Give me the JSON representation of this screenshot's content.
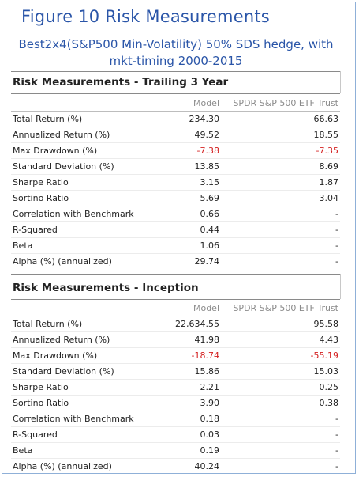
{
  "figure": {
    "title": "Figure 10   Risk Measurements",
    "subtitle_line1": "Best2x4(S&P500 Min-Volatility) 50% SDS hedge, with",
    "subtitle_line2": "mkt-timing 2000-2015"
  },
  "columns": {
    "model": "Model",
    "benchmark": "SPDR S&P 500 ETF Trust"
  },
  "colors": {
    "title_blue": "#2a55a8",
    "negative": "#d42020",
    "frame": "#8fb0d8"
  },
  "sections": [
    {
      "title": "Risk Measurements - Trailing 3 Year",
      "rows": [
        {
          "label": "Total Return (%)",
          "model": "234.30",
          "benchmark": "66.63"
        },
        {
          "label": "Annualized Return (%)",
          "model": "49.52",
          "benchmark": "18.55"
        },
        {
          "label": "Max Drawdown (%)",
          "model": "-7.38",
          "benchmark": "-7.35"
        },
        {
          "label": "Standard Deviation (%)",
          "model": "13.85",
          "benchmark": "8.69"
        },
        {
          "label": "Sharpe Ratio",
          "model": "3.15",
          "benchmark": "1.87"
        },
        {
          "label": "Sortino Ratio",
          "model": "5.69",
          "benchmark": "3.04"
        },
        {
          "label": "Correlation with Benchmark",
          "model": "0.66",
          "benchmark": "-"
        },
        {
          "label": "R-Squared",
          "model": "0.44",
          "benchmark": "-"
        },
        {
          "label": "Beta",
          "model": "1.06",
          "benchmark": "-"
        },
        {
          "label": "Alpha (%) (annualized)",
          "model": "29.74",
          "benchmark": "-"
        }
      ]
    },
    {
      "title": "Risk Measurements - Inception",
      "rows": [
        {
          "label": "Total Return (%)",
          "model": "22,634.55",
          "benchmark": "95.58"
        },
        {
          "label": "Annualized Return (%)",
          "model": "41.98",
          "benchmark": "4.43"
        },
        {
          "label": "Max Drawdown (%)",
          "model": "-18.74",
          "benchmark": "-55.19"
        },
        {
          "label": "Standard Deviation (%)",
          "model": "15.86",
          "benchmark": "15.03"
        },
        {
          "label": "Sharpe Ratio",
          "model": "2.21",
          "benchmark": "0.25"
        },
        {
          "label": "Sortino Ratio",
          "model": "3.90",
          "benchmark": "0.38"
        },
        {
          "label": "Correlation with Benchmark",
          "model": "0.18",
          "benchmark": "-"
        },
        {
          "label": "R-Squared",
          "model": "0.03",
          "benchmark": "-"
        },
        {
          "label": "Beta",
          "model": "0.19",
          "benchmark": "-"
        },
        {
          "label": "Alpha (%) (annualized)",
          "model": "40.24",
          "benchmark": "-"
        }
      ]
    }
  ]
}
